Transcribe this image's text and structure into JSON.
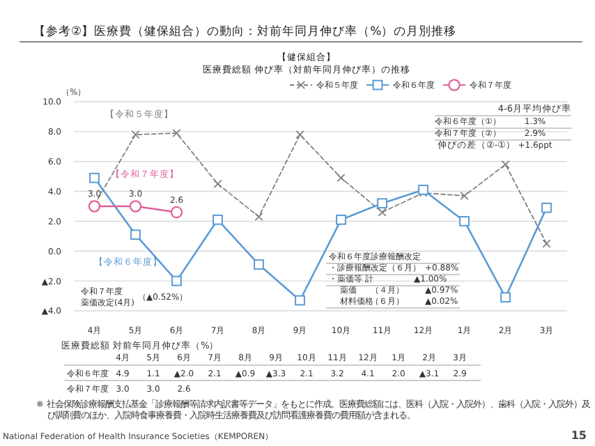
{
  "chart_data": [
    {
      "type": "line",
      "title": "【参考②】医療費（健保組合）の動向：対前年同月伸び率（%）の月別推移",
      "subtitle": "医療費総額 伸び率（対前年同月伸び率）の推移",
      "ylabel": "（%）",
      "categories": [
        "4月",
        "5月",
        "6月",
        "7月",
        "8月",
        "9月",
        "10月",
        "11月",
        "12月",
        "1月",
        "2月",
        "3月"
      ],
      "ylim": [
        -4,
        10
      ],
      "yticks": [
        {
          "value": -4,
          "label": "▲4.0"
        },
        {
          "value": -2,
          "label": "▲2.0"
        },
        {
          "value": 0,
          "label": "0.0"
        },
        {
          "value": 2,
          "label": "2.0"
        },
        {
          "value": 4,
          "label": "4.0"
        },
        {
          "value": 6,
          "label": "6.0"
        },
        {
          "value": 8,
          "label": "8.0"
        },
        {
          "value": 10,
          "label": "10.0"
        }
      ],
      "grid": "y",
      "legend": "top right",
      "series": [
        {
          "name": "令和５年度",
          "color": "#808080",
          "line_style": "dashed",
          "marker": "cross",
          "values": [
            3.1,
            7.8,
            7.9,
            4.5,
            2.3,
            7.8,
            4.9,
            2.6,
            3.9,
            3.7,
            5.8,
            0.5
          ]
        },
        {
          "name": "令和６年度",
          "color": "#5b9bd5",
          "line_style": "solid",
          "marker": "square",
          "values": [
            4.9,
            1.1,
            -2.0,
            2.1,
            -0.9,
            -3.3,
            2.1,
            3.2,
            4.1,
            2.0,
            -3.1,
            2.9
          ]
        },
        {
          "name": "令和７年度",
          "color": "#e0609a",
          "line_style": "solid",
          "marker": "circle",
          "values": [
            3.0,
            3.0,
            2.6,
            null,
            null,
            null,
            null,
            null,
            null,
            null,
            null,
            null
          ],
          "value_labels": [
            "3.0",
            "3.0",
            "2.6",
            null,
            null,
            null,
            null,
            null,
            null,
            null,
            null,
            null
          ]
        }
      ],
      "annotations": [
        "【健保組合】",
        "【令和５年度】",
        "【令和７年度】",
        "【令和６年度】",
        "令和７年度",
        "薬価改定(4月)",
        "（▲0.52%）",
        "4-6月平均伸び率",
        "令和６年度（①）",
        "1.3%",
        "令和７年度（②）",
        "2.9%",
        "伸びの差（②-①）",
        "+1.6ppt",
        "令和６年度診療報酬改定",
        "・診療報酬改定（６月）",
        "+0.88%",
        "・薬価等 計",
        "▲1.00%",
        "薬価",
        "（４月）",
        "▲0.97%",
        "材料価格",
        "（６月）",
        "▲0.02%",
        "※ 社会保険診療報酬支払基金「診療報酬等請求内訳書等データ」をもとに作成。医療費総額には、医科（入院・入院外）、歯科（入院・入院外）及び調剤費のほか、入院時食事療養費・入院時生活療養費及び訪問看護療養費の費用額が含まれる。",
        "National Federation of Health Insurance Societies（KEMPOREN）",
        "15"
      ]
    },
    {
      "type": "heatmap",
      "title": "医療費総額 対前年同月伸び率（%）",
      "categories": [
        "4月",
        "5月",
        "6月",
        "7月",
        "8月",
        "9月",
        "10月",
        "11月",
        "12月",
        "1月",
        "2月",
        "3月"
      ],
      "y_categories": [
        "令和６年度",
        "令和７年度"
      ],
      "cells": [
        [
          null,
          null,
          null,
          null,
          null,
          null,
          null,
          null,
          null,
          null,
          null,
          null
        ],
        [
          null,
          null,
          null,
          null,
          null,
          null,
          null,
          null,
          null,
          null,
          null,
          null
        ]
      ],
      "cell_labels": [
        [
          "4.9",
          "1.1",
          "▲2.0",
          "2.1",
          "▲0.9",
          "▲3.3",
          "2.1",
          "3.2",
          "4.1",
          "2.0",
          "▲3.1",
          "2.9"
        ],
        [
          "3.0",
          "3.0",
          "2.6",
          null,
          null,
          null,
          null,
          null,
          null,
          null,
          null,
          null
        ]
      ]
    }
  ]
}
